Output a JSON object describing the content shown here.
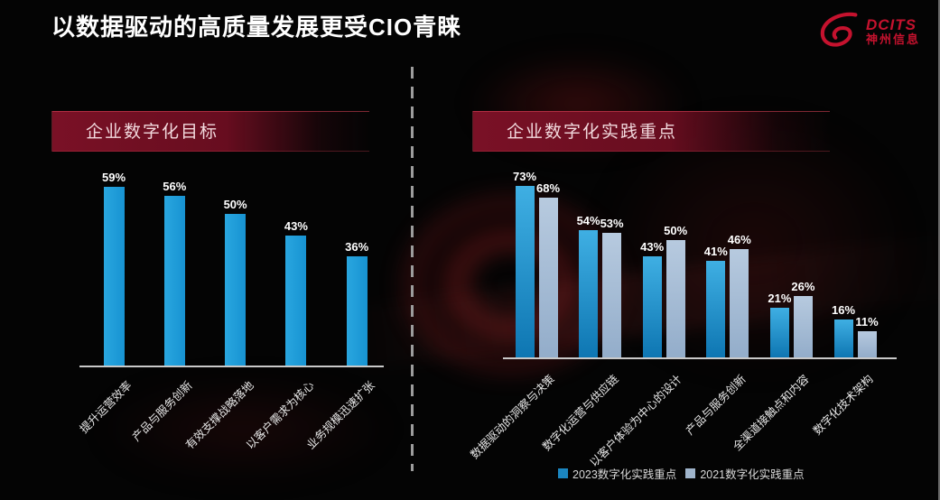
{
  "title": "以数据驱动的高质量发展更受CIO青睐",
  "logo": {
    "brand": "DCITS",
    "brand_cn": "神州信息",
    "brand_color": "#C5122E"
  },
  "panels": [
    {
      "header": "企业数字化目标"
    },
    {
      "header": "企业数字化实践重点"
    }
  ],
  "chart_data": [
    {
      "type": "bar",
      "title": "企业数字化目标",
      "categories": [
        "提升运营效率",
        "产品与服务创新",
        "有效支撑战略落地",
        "以客户需求为核心",
        "业务规模迅速扩张"
      ],
      "values": [
        59,
        56,
        50,
        43,
        36
      ],
      "labels": [
        "59%",
        "56%",
        "50%",
        "43%",
        "36%"
      ],
      "bar_color_left": "#29A6DF",
      "bar_color_right": "#1793D2",
      "ylim": [
        0,
        65
      ],
      "grid": false,
      "axis_line_color": "#C9C9C9",
      "value_label_position": "above"
    },
    {
      "type": "bar",
      "title": "企业数字化实践重点",
      "categories": [
        "数据驱动的洞察与决策",
        "数字化运营与供应链",
        "以客户体验为中心的设计",
        "产品与服务创新",
        "全渠道接触点和内容",
        "数字化技术架构"
      ],
      "series": [
        {
          "name": "2023数字化实践重点",
          "values": [
            73,
            54,
            43,
            41,
            21,
            16
          ],
          "labels": [
            "73%",
            "54%",
            "43%",
            "41%",
            "21%",
            "16%"
          ],
          "color_top": "#3FAFE3",
          "color_bottom": "#0E76B2"
        },
        {
          "name": "2021数字化实践重点",
          "values": [
            68,
            53,
            50,
            46,
            26,
            11
          ],
          "labels": [
            "68%",
            "53%",
            "50%",
            "46%",
            "26%",
            "11%"
          ],
          "color_top": "#B7CADF",
          "color_bottom": "#93ADCA"
        }
      ],
      "ylim": [
        0,
        80
      ],
      "grid": false,
      "axis_line_color": "#C9C9C9",
      "legend_position": "bottom"
    }
  ],
  "legend": {
    "items": [
      {
        "label": "2023数字化实践重点",
        "color": "#1B86C0"
      },
      {
        "label": "2021数字化实践重点",
        "color": "#9FB4CB"
      }
    ]
  }
}
